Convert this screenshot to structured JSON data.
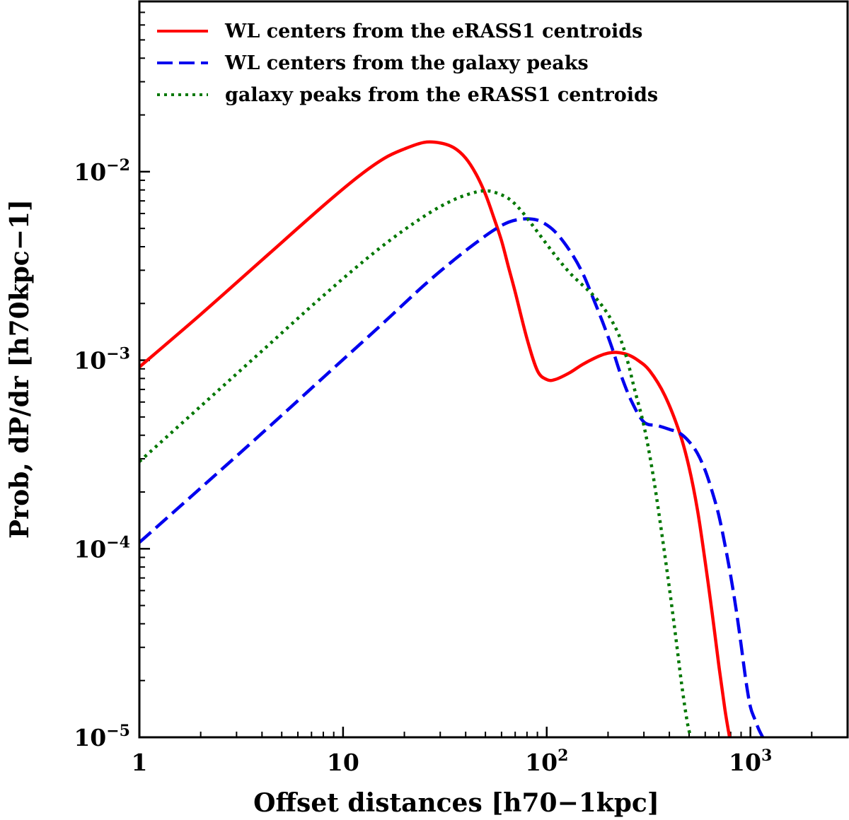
{
  "chart_data": {
    "type": "line",
    "xscale": "log",
    "yscale": "log",
    "xlim": [
      1,
      3000
    ],
    "ylim": [
      1e-05,
      0.08
    ],
    "xlabel": {
      "text": "Offset distances ",
      "unit": "[h70−1kpc]"
    },
    "ylabel": {
      "text": "Prob, ",
      "unit": "dP/dr [h70kpc−1]"
    },
    "x_ticks": [
      {
        "value": 1,
        "text": "1"
      },
      {
        "value": 10,
        "text": "10"
      },
      {
        "value": 100,
        "base": "10",
        "exp": "2"
      },
      {
        "value": 1000,
        "base": "10",
        "exp": "3"
      }
    ],
    "y_ticks": [
      {
        "value": 0.01,
        "base": "10",
        "exp": "−2"
      },
      {
        "value": 0.001,
        "base": "10",
        "exp": "−3"
      },
      {
        "value": 0.0001,
        "base": "10",
        "exp": "−4"
      },
      {
        "value": 1e-05,
        "base": "10",
        "exp": "−5"
      }
    ],
    "legend_position": "top-left",
    "series": [
      {
        "name": "WL centers from the eRASS1 centroids",
        "color": "#ff0000",
        "style": "solid",
        "x": [
          1,
          2,
          4,
          8,
          12,
          16,
          20,
          25,
          30,
          35,
          40,
          45,
          50,
          55,
          60,
          65,
          70,
          80,
          90,
          100,
          110,
          130,
          150,
          180,
          200,
          220,
          250,
          280,
          320,
          380,
          450,
          500,
          550,
          600,
          650,
          700,
          750,
          790
        ],
        "y": [
          0.00092,
          0.00175,
          0.0034,
          0.0066,
          0.0095,
          0.0118,
          0.0132,
          0.0143,
          0.0142,
          0.0134,
          0.0118,
          0.0097,
          0.0076,
          0.0057,
          0.0043,
          0.0031,
          0.0023,
          0.0013,
          0.00088,
          0.00079,
          0.00079,
          0.00086,
          0.00095,
          0.00105,
          0.00109,
          0.0011,
          0.00107,
          0.001,
          0.00088,
          0.00065,
          0.00041,
          0.00027,
          0.00016,
          8.5e-05,
          4.5e-05,
          2.4e-05,
          1.4e-05,
          1e-05
        ]
      },
      {
        "name": "WL centers from the galaxy peaks",
        "color": "#0000ee",
        "style": "dashed",
        "x": [
          1,
          2,
          4,
          8,
          15,
          25,
          35,
          45,
          55,
          65,
          75,
          85,
          95,
          110,
          130,
          150,
          170,
          190,
          210,
          230,
          260,
          300,
          350,
          400,
          450,
          500,
          550,
          600,
          650,
          700,
          750,
          800,
          850,
          900,
          950,
          1000,
          1050,
          1100,
          1150
        ],
        "y": [
          0.000108,
          0.00021,
          0.00041,
          0.00081,
          0.0015,
          0.0025,
          0.0034,
          0.0042,
          0.0049,
          0.0054,
          0.0056,
          0.0056,
          0.0054,
          0.0048,
          0.0038,
          0.0029,
          0.0021,
          0.00155,
          0.00115,
          0.00085,
          0.00061,
          0.00047,
          0.00045,
          0.00043,
          0.00041,
          0.00037,
          0.00032,
          0.00026,
          0.0002,
          0.00015,
          0.000105,
          7.2e-05,
          4.8e-05,
          3.1e-05,
          2e-05,
          1.45e-05,
          1.25e-05,
          1.1e-05,
          1e-05
        ]
      },
      {
        "name": "galaxy peaks from the eRASS1 centroids",
        "color": "#007700",
        "style": "dotted",
        "x": [
          1,
          2,
          4,
          8,
          15,
          25,
          35,
          45,
          50,
          55,
          65,
          75,
          90,
          110,
          130,
          150,
          170,
          190,
          210,
          230,
          250,
          270,
          300,
          330,
          360,
          400,
          430,
          460,
          490,
          510
        ],
        "y": [
          0.00029,
          0.00057,
          0.00112,
          0.0022,
          0.0039,
          0.0058,
          0.0071,
          0.0078,
          0.0079,
          0.0078,
          0.0072,
          0.0062,
          0.0048,
          0.0036,
          0.0029,
          0.0025,
          0.0022,
          0.0019,
          0.0016,
          0.0013,
          0.00098,
          0.0007,
          0.00045,
          0.00026,
          0.00014,
          6.2e-05,
          3.4e-05,
          1.9e-05,
          1.2e-05,
          1e-05
        ]
      }
    ]
  }
}
